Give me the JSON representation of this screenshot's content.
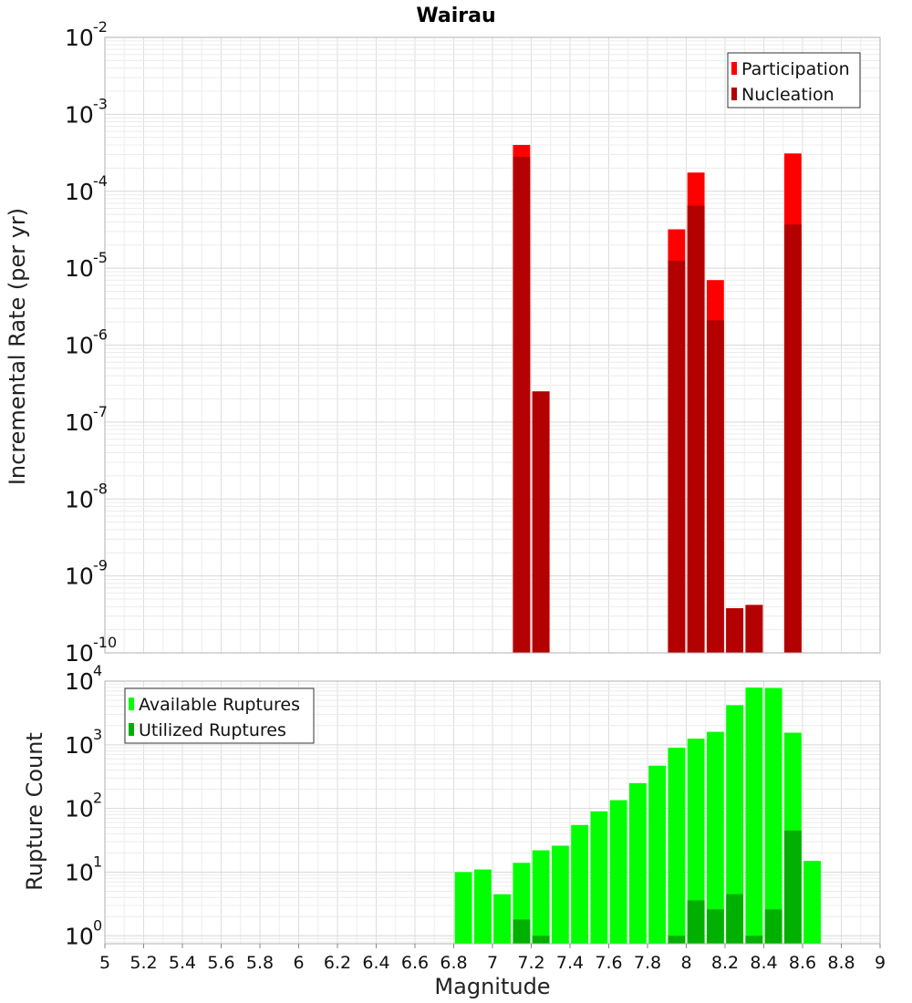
{
  "chart_data": [
    {
      "type": "bar",
      "title": "Wairau",
      "xlabel": "",
      "ylabel": "Incremental Rate (per yr)",
      "xlim": [
        5,
        9
      ],
      "ylim": [
        1e-10,
        0.01
      ],
      "yscale": "log",
      "grid": true,
      "legend_position": "top-right",
      "bin_width": 0.1,
      "overlay": true,
      "series": [
        {
          "name": "Participation",
          "color": "#ff0000",
          "points": [
            {
              "x": 7.15,
              "y": 0.0004
            },
            {
              "x": 7.25,
              "y": 2.5e-07
            },
            {
              "x": 7.95,
              "y": 3.2e-05
            },
            {
              "x": 8.05,
              "y": 0.000175
            },
            {
              "x": 8.15,
              "y": 7e-06
            },
            {
              "x": 8.25,
              "y": 3.8e-10
            },
            {
              "x": 8.35,
              "y": 4.2e-10
            },
            {
              "x": 8.55,
              "y": 0.00031
            }
          ]
        },
        {
          "name": "Nucleation",
          "color": "#b30000",
          "points": [
            {
              "x": 7.15,
              "y": 0.00028
            },
            {
              "x": 7.25,
              "y": 2.5e-07
            },
            {
              "x": 7.95,
              "y": 1.25e-05
            },
            {
              "x": 8.05,
              "y": 6.5e-05
            },
            {
              "x": 8.15,
              "y": 2.1e-06
            },
            {
              "x": 8.25,
              "y": 3.8e-10
            },
            {
              "x": 8.35,
              "y": 4.2e-10
            },
            {
              "x": 8.55,
              "y": 3.7e-05
            }
          ]
        }
      ]
    },
    {
      "type": "bar",
      "title": "",
      "xlabel": "Magnitude",
      "ylabel": "Rupture Count",
      "xlim": [
        5,
        9
      ],
      "ylim": [
        0.75,
        10000
      ],
      "yscale": "log",
      "grid": true,
      "legend_position": "top-left",
      "bin_width": 0.1,
      "overlay": true,
      "x_ticks": [
        "5",
        "5.2",
        "5.4",
        "5.6",
        "5.8",
        "6",
        "6.2",
        "6.4",
        "6.6",
        "6.8",
        "7",
        "7.2",
        "7.4",
        "7.6",
        "7.8",
        "8",
        "8.2",
        "8.4",
        "8.6",
        "8.8",
        "9"
      ],
      "series": [
        {
          "name": "Available Ruptures",
          "color": "#00ff00",
          "points": [
            {
              "x": 6.85,
              "y": 10
            },
            {
              "x": 6.95,
              "y": 11
            },
            {
              "x": 7.05,
              "y": 4.5
            },
            {
              "x": 7.15,
              "y": 14
            },
            {
              "x": 7.25,
              "y": 22
            },
            {
              "x": 7.35,
              "y": 26
            },
            {
              "x": 7.45,
              "y": 55
            },
            {
              "x": 7.55,
              "y": 90
            },
            {
              "x": 7.65,
              "y": 135
            },
            {
              "x": 7.75,
              "y": 250
            },
            {
              "x": 7.85,
              "y": 470
            },
            {
              "x": 7.95,
              "y": 900
            },
            {
              "x": 8.05,
              "y": 1250
            },
            {
              "x": 8.15,
              "y": 1600
            },
            {
              "x": 8.25,
              "y": 4200
            },
            {
              "x": 8.35,
              "y": 7900
            },
            {
              "x": 8.45,
              "y": 7800
            },
            {
              "x": 8.55,
              "y": 1550
            },
            {
              "x": 8.65,
              "y": 15
            }
          ]
        },
        {
          "name": "Utilized Ruptures",
          "color": "#00b000",
          "points": [
            {
              "x": 7.15,
              "y": 1.8
            },
            {
              "x": 7.25,
              "y": 1
            },
            {
              "x": 7.95,
              "y": 1
            },
            {
              "x": 8.05,
              "y": 3.6
            },
            {
              "x": 8.15,
              "y": 2.6
            },
            {
              "x": 8.25,
              "y": 4.5
            },
            {
              "x": 8.35,
              "y": 1
            },
            {
              "x": 8.45,
              "y": 2.6
            },
            {
              "x": 8.55,
              "y": 45
            }
          ]
        }
      ]
    }
  ]
}
